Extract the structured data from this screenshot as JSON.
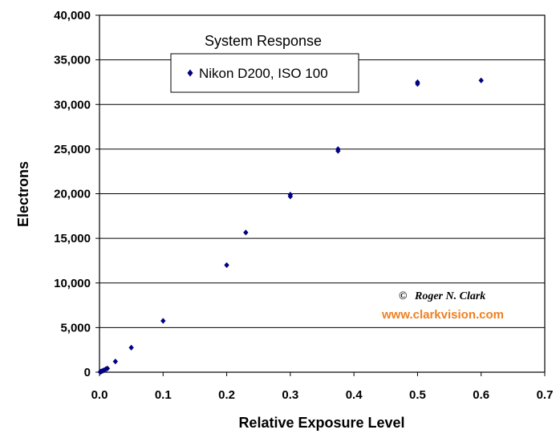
{
  "chart_data": {
    "type": "scatter",
    "title": "System Response",
    "xlabel": "Relative Exposure Level",
    "ylabel": "Electrons",
    "xlim": [
      0,
      0.7
    ],
    "ylim": [
      0,
      40000
    ],
    "x_ticks": [
      "0.0",
      "0.1",
      "0.2",
      "0.3",
      "0.4",
      "0.5",
      "0.6",
      "0.7"
    ],
    "y_ticks": [
      "0",
      "5,000",
      "10,000",
      "15,000",
      "20,000",
      "25,000",
      "30,000",
      "35,000",
      "40,000"
    ],
    "grid": "horizontal",
    "legend_position": "top-center",
    "series": [
      {
        "name": "Nikon D200,  ISO 100",
        "marker": "diamond",
        "color": "#000080",
        "points": [
          [
            0.001,
            30
          ],
          [
            0.002,
            60
          ],
          [
            0.003,
            90
          ],
          [
            0.005,
            150
          ],
          [
            0.007,
            230
          ],
          [
            0.01,
            350
          ],
          [
            0.0125,
            420
          ],
          [
            0.025,
            1200
          ],
          [
            0.05,
            2750
          ],
          [
            0.1,
            5750
          ],
          [
            0.2,
            12000
          ],
          [
            0.23,
            15650
          ],
          [
            0.3,
            19700
          ],
          [
            0.3,
            19900
          ],
          [
            0.375,
            24800
          ],
          [
            0.375,
            25000
          ],
          [
            0.5,
            32300
          ],
          [
            0.5,
            32500
          ],
          [
            0.6,
            32700
          ]
        ]
      }
    ]
  },
  "credit": {
    "symbol": "©",
    "name": "Roger N. Clark",
    "url": "www.clarkvision.com",
    "url_color": "#f08020"
  }
}
